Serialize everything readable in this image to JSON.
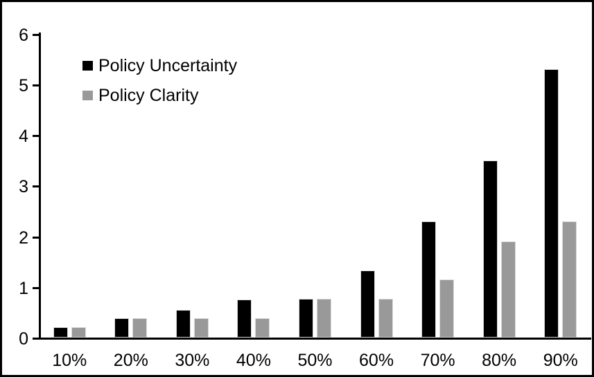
{
  "chart_data": {
    "type": "bar",
    "title": "",
    "xlabel": "",
    "ylabel": "",
    "categories": [
      "10%",
      "20%",
      "30%",
      "40%",
      "50%",
      "60%",
      "70%",
      "80%",
      "90%"
    ],
    "series": [
      {
        "name": "Policy Uncertainty",
        "color": "#000000",
        "values": [
          0.2,
          0.38,
          0.55,
          0.75,
          0.77,
          1.33,
          2.3,
          3.5,
          5.3
        ]
      },
      {
        "name": "Policy Clarity",
        "color": "#999999",
        "values": [
          0.2,
          0.38,
          0.38,
          0.38,
          0.77,
          0.77,
          1.15,
          1.9,
          2.3
        ]
      }
    ],
    "ylim": [
      0,
      6
    ],
    "yticks": [
      0,
      1,
      2,
      3,
      4,
      5,
      6
    ],
    "grid": false,
    "legend_position": "inside-top-left",
    "axis_color": "#000000",
    "background_color": "#ffffff"
  }
}
